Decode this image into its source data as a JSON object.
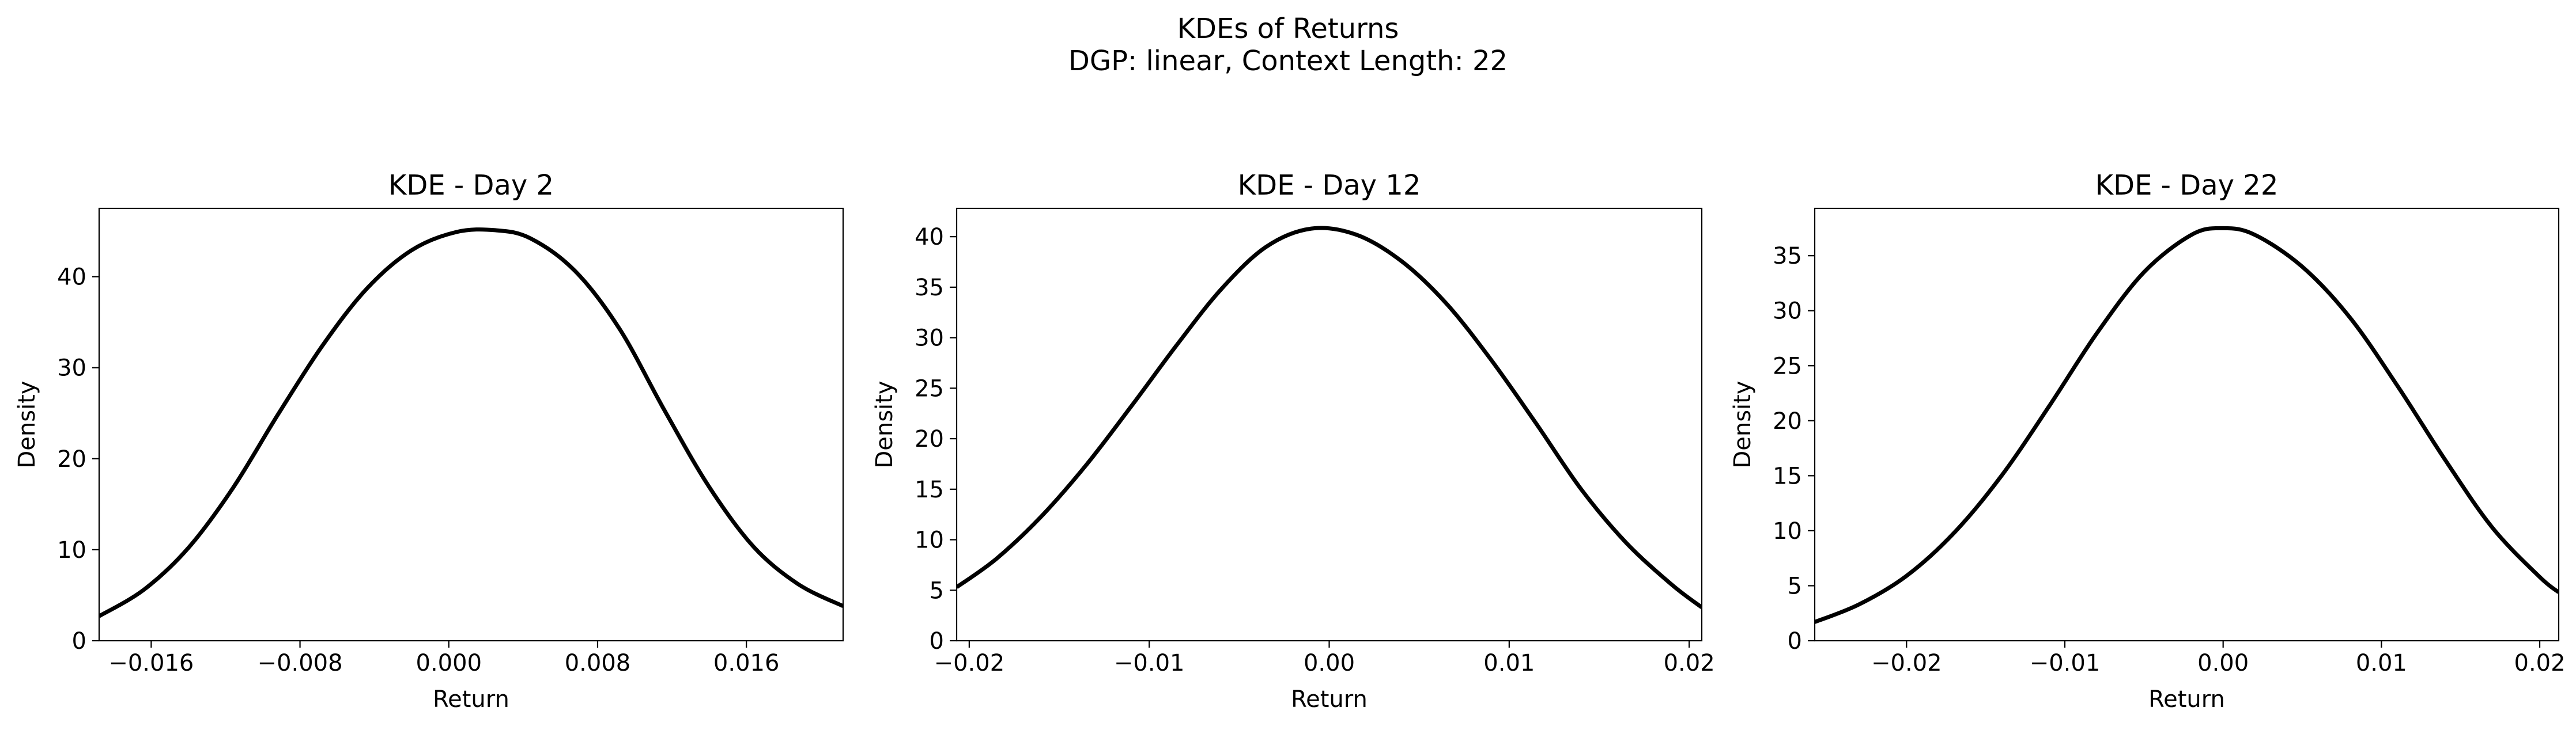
{
  "figure": {
    "title_line1": "KDEs of Returns",
    "title_line2": "DGP: linear, Context Length: 22"
  },
  "chart_data": [
    {
      "type": "line",
      "title": "KDE - Day 2",
      "xlabel": "Return",
      "ylabel": "Density",
      "xlim": [
        -0.0188,
        0.0212
      ],
      "ylim": [
        0,
        47.5
      ],
      "xticks": [
        -0.016,
        -0.008,
        0.0,
        0.008,
        0.016
      ],
      "xtick_labels": [
        "−0.016",
        "−0.008",
        "0.000",
        "0.008",
        "0.016"
      ],
      "yticks": [
        0,
        10,
        20,
        30,
        40
      ],
      "ytick_labels": [
        "0",
        "10",
        "20",
        "30",
        "40"
      ],
      "grid": false,
      "line_color": "#000000",
      "series": [
        {
          "x": [
            -0.0188,
            -0.0164,
            -0.014,
            -0.0116,
            -0.0092,
            -0.0068,
            -0.0044,
            -0.002,
            0.0004,
            0.0025,
            0.0044,
            0.0068,
            0.0092,
            0.0116,
            0.014,
            0.0164,
            0.0188,
            0.0212
          ],
          "y": [
            2.7,
            5.6,
            10.2,
            16.8,
            24.8,
            32.4,
            38.7,
            42.9,
            44.9,
            45.1,
            44.2,
            40.6,
            34.2,
            25.3,
            16.9,
            10.3,
            6.2,
            3.8
          ]
        }
      ]
    },
    {
      "type": "line",
      "title": "KDE - Day 12",
      "xlabel": "Return",
      "ylabel": "Density",
      "xlim": [
        -0.0207,
        0.0207
      ],
      "ylim": [
        0,
        42.8
      ],
      "xticks": [
        -0.02,
        -0.01,
        0.0,
        0.01,
        0.02
      ],
      "xtick_labels": [
        "−0.02",
        "−0.01",
        "0.00",
        "0.01",
        "0.02"
      ],
      "yticks": [
        0,
        5,
        10,
        15,
        20,
        25,
        30,
        35,
        40
      ],
      "ytick_labels": [
        "0",
        "5",
        "10",
        "15",
        "20",
        "25",
        "30",
        "35",
        "40"
      ],
      "grid": false,
      "line_color": "#000000",
      "series": [
        {
          "x": [
            -0.0207,
            -0.0185,
            -0.016,
            -0.0135,
            -0.011,
            -0.0085,
            -0.006,
            -0.0035,
            -0.001,
            0.0015,
            0.004,
            0.0065,
            0.009,
            0.0115,
            0.014,
            0.0165,
            0.019,
            0.0207
          ],
          "y": [
            5.3,
            8.1,
            12.3,
            17.4,
            23.2,
            29.2,
            34.8,
            39.0,
            40.8,
            40.2,
            37.6,
            33.4,
            27.8,
            21.5,
            15.0,
            9.7,
            5.6,
            3.3
          ]
        }
      ]
    },
    {
      "type": "line",
      "title": "KDE - Day 22",
      "xlabel": "Return",
      "ylabel": "Density",
      "xlim": [
        -0.0258,
        0.0212
      ],
      "ylim": [
        0,
        39.3
      ],
      "xticks": [
        -0.02,
        -0.01,
        0.0,
        0.01,
        0.02
      ],
      "xtick_labels": [
        "−0.02",
        "−0.01",
        "0.00",
        "0.01",
        "0.02"
      ],
      "yticks": [
        0,
        5,
        10,
        15,
        20,
        25,
        30,
        35
      ],
      "ytick_labels": [
        "0",
        "5",
        "10",
        "15",
        "20",
        "25",
        "30",
        "35"
      ],
      "grid": false,
      "line_color": "#000000",
      "series": [
        {
          "x": [
            -0.0258,
            -0.023,
            -0.02,
            -0.017,
            -0.014,
            -0.011,
            -0.008,
            -0.005,
            -0.002,
            0.0,
            0.002,
            0.005,
            0.008,
            0.011,
            0.014,
            0.017,
            0.02,
            0.0212
          ],
          "y": [
            1.7,
            3.3,
            5.9,
            9.8,
            15.0,
            21.3,
            27.9,
            33.5,
            36.9,
            37.5,
            36.9,
            34.0,
            29.4,
            23.2,
            16.5,
            10.3,
            5.8,
            4.4
          ]
        }
      ]
    }
  ]
}
